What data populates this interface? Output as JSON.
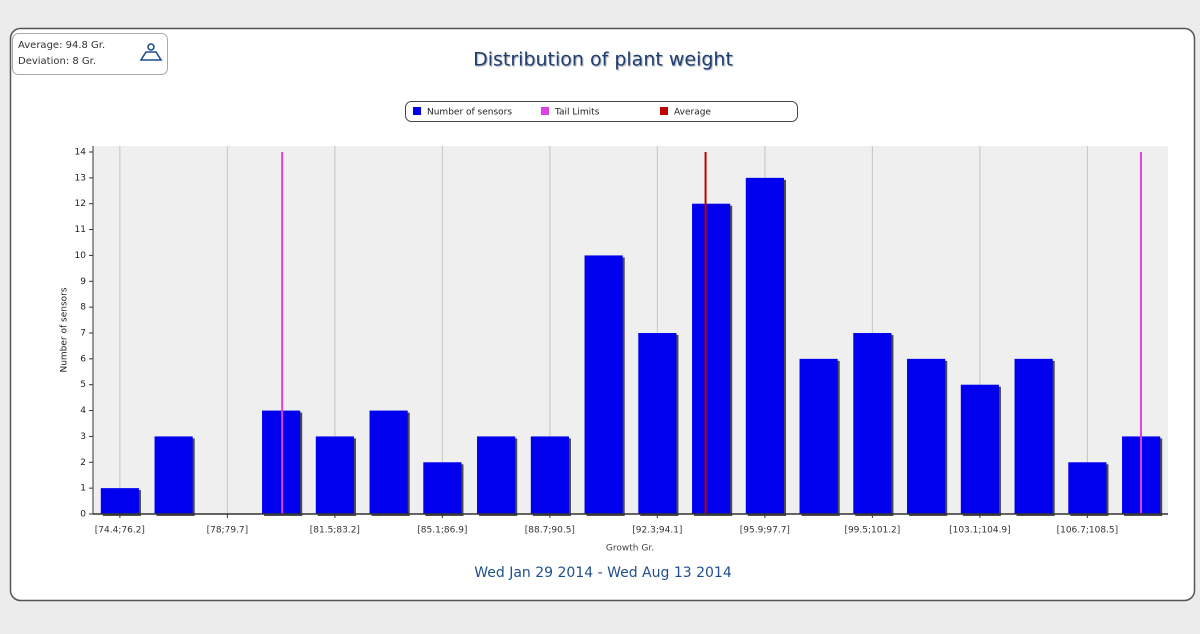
{
  "info": [
    "Average: 94.8 Gr.",
    "Deviation: 8 Gr."
  ],
  "chart_data": {
    "type": "bar",
    "title": "Distribution of plant weight",
    "subtitle": "Wed Jan 29 2014 - Wed Aug 13 2014",
    "x_label": "Growth Gr.",
    "y_label": "Number of sensors",
    "categories": [
      "[74.4;76.2]",
      null,
      "[78;79.7]",
      null,
      "[81.5;83.2]",
      null,
      "[85.1;86.9]",
      null,
      "[88.7;90.5]",
      null,
      "[92.3;94.1]",
      null,
      "[95.9;97.7]",
      null,
      "[99.5;101.2]",
      null,
      "[103.1;104.9]",
      null,
      "[106.7;108.5]",
      null
    ],
    "series": [
      {
        "name": "Number of sensors",
        "color": "#0000ee",
        "values": [
          1,
          3,
          0,
          4,
          3,
          4,
          2,
          3,
          3,
          10,
          7,
          12,
          13,
          6,
          7,
          6,
          5,
          6,
          2,
          3
        ]
      }
    ],
    "reference_lines": [
      {
        "name": "Tail Limits",
        "color": "#e040e0",
        "values": [
          80.7,
          109.3
        ]
      },
      {
        "name": "Average",
        "color": "#c00000",
        "values": [
          94.8
        ]
      }
    ],
    "xlim": [
      74.4,
      110.2
    ],
    "ylim": [
      0,
      14
    ],
    "yticks": [
      0,
      1,
      2,
      3,
      4,
      5,
      6,
      7,
      8,
      9,
      10,
      11,
      12,
      13,
      14
    ],
    "grid": true
  }
}
